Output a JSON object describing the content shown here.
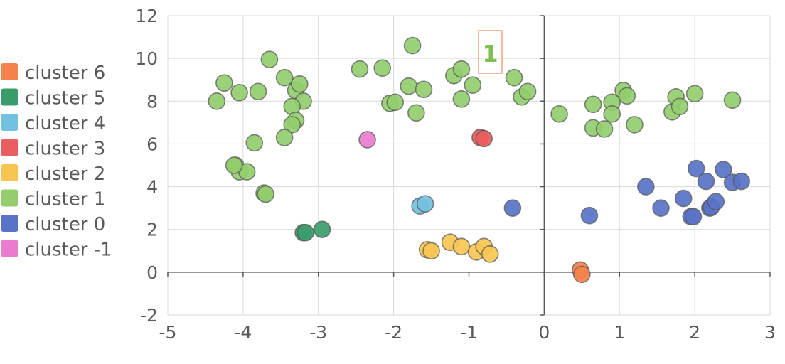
{
  "chart_data": {
    "type": "scatter",
    "title": "",
    "xlabel": "",
    "ylabel": "",
    "xlim": [
      -5,
      3
    ],
    "ylim": [
      -2,
      12
    ],
    "x_ticks": [
      "-5",
      "-4",
      "-3",
      "-2",
      "-1",
      "0",
      "1",
      "2",
      "3"
    ],
    "y_ticks": [
      "-2",
      "0",
      "2",
      "4",
      "6",
      "8",
      "10",
      "12"
    ],
    "grid": true,
    "legend_position": "left",
    "annotation": {
      "text": "1",
      "x": -0.7,
      "y": 10.3
    },
    "series": [
      {
        "name": "cluster 6",
        "color": "#f4824a",
        "points": [
          [
            0.48,
            0.1
          ],
          [
            0.5,
            -0.1
          ]
        ]
      },
      {
        "name": "cluster 5",
        "color": "#3a9c6a",
        "points": [
          [
            -3.2,
            1.85
          ],
          [
            -3.17,
            1.85
          ],
          [
            -2.95,
            2.0
          ]
        ]
      },
      {
        "name": "cluster 4",
        "color": "#73c1e0",
        "points": [
          [
            -1.65,
            3.1
          ],
          [
            -1.58,
            3.2
          ]
        ]
      },
      {
        "name": "cluster 3",
        "color": "#e85d5d",
        "points": [
          [
            -0.85,
            6.3
          ],
          [
            -0.8,
            6.25
          ]
        ]
      },
      {
        "name": "cluster 2",
        "color": "#f9c552",
        "points": [
          [
            -1.55,
            1.05
          ],
          [
            -1.5,
            1.0
          ],
          [
            -1.25,
            1.4
          ],
          [
            -1.1,
            1.2
          ],
          [
            -0.9,
            0.95
          ],
          [
            -0.8,
            1.2
          ],
          [
            -0.72,
            0.85
          ]
        ]
      },
      {
        "name": "cluster 1",
        "color": "#93cd6c",
        "points": [
          [
            -4.35,
            8.0
          ],
          [
            -4.25,
            8.85
          ],
          [
            -4.05,
            8.4
          ],
          [
            -3.8,
            8.45
          ],
          [
            -3.65,
            9.95
          ],
          [
            -3.45,
            9.1
          ],
          [
            -3.3,
            8.5
          ],
          [
            -3.25,
            8.8
          ],
          [
            -3.2,
            8.0
          ],
          [
            -3.35,
            7.75
          ],
          [
            -3.3,
            7.1
          ],
          [
            -3.35,
            6.9
          ],
          [
            -3.45,
            6.3
          ],
          [
            -3.85,
            6.05
          ],
          [
            -4.1,
            5.0
          ],
          [
            -4.05,
            4.7
          ],
          [
            -3.95,
            4.7
          ],
          [
            -4.12,
            5.0
          ],
          [
            -3.72,
            3.7
          ],
          [
            -3.7,
            3.65
          ],
          [
            -2.45,
            9.5
          ],
          [
            -2.15,
            9.55
          ],
          [
            -1.75,
            10.6
          ],
          [
            -2.05,
            7.9
          ],
          [
            -1.98,
            7.95
          ],
          [
            -1.8,
            8.7
          ],
          [
            -1.6,
            8.55
          ],
          [
            -1.7,
            7.45
          ],
          [
            -1.2,
            9.2
          ],
          [
            -1.1,
            9.5
          ],
          [
            -1.1,
            8.1
          ],
          [
            -0.95,
            8.75
          ],
          [
            -0.4,
            9.1
          ],
          [
            -0.3,
            8.2
          ],
          [
            -0.22,
            8.45
          ],
          [
            0.2,
            7.4
          ],
          [
            0.65,
            7.85
          ],
          [
            0.65,
            6.75
          ],
          [
            0.8,
            6.7
          ],
          [
            0.9,
            7.95
          ],
          [
            0.9,
            7.4
          ],
          [
            1.05,
            8.5
          ],
          [
            1.1,
            8.25
          ],
          [
            1.2,
            6.9
          ],
          [
            1.7,
            7.5
          ],
          [
            1.75,
            8.2
          ],
          [
            1.8,
            7.75
          ],
          [
            2.0,
            8.35
          ],
          [
            2.5,
            8.05
          ]
        ]
      },
      {
        "name": "cluster 0",
        "color": "#5873c8",
        "points": [
          [
            -0.42,
            3.0
          ],
          [
            0.6,
            2.65
          ],
          [
            1.35,
            4.0
          ],
          [
            1.55,
            3.0
          ],
          [
            1.85,
            3.45
          ],
          [
            1.95,
            2.6
          ],
          [
            1.98,
            2.6
          ],
          [
            2.02,
            4.85
          ],
          [
            2.15,
            4.25
          ],
          [
            2.2,
            3.0
          ],
          [
            2.22,
            3.05
          ],
          [
            2.28,
            3.3
          ],
          [
            2.38,
            4.8
          ],
          [
            2.5,
            4.2
          ],
          [
            2.62,
            4.25
          ]
        ]
      },
      {
        "name": "cluster -1",
        "color": "#ea7ccf",
        "points": [
          [
            -2.35,
            6.2
          ]
        ]
      }
    ]
  }
}
